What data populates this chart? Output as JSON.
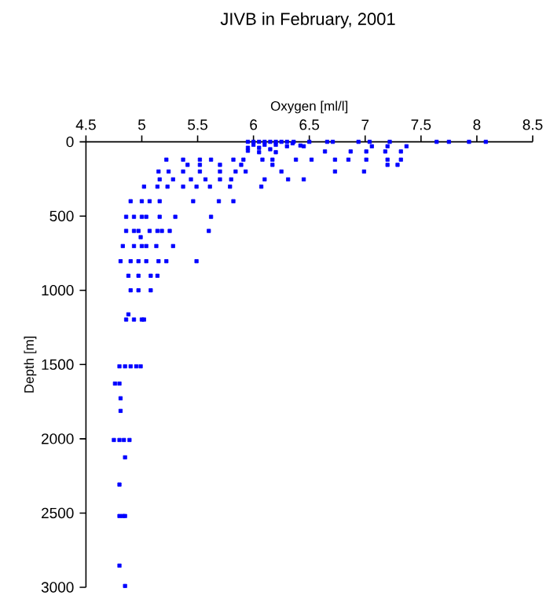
{
  "chart_data": {
    "type": "scatter",
    "title": "JIVB in February, 2001",
    "xlabel": "Oxygen [ml/l]",
    "ylabel": "Depth [m]",
    "xlim": [
      4.5,
      8.5
    ],
    "xticks": [
      4.5,
      5,
      5.5,
      6,
      6.5,
      7,
      7.5,
      8,
      8.5
    ],
    "ylim": [
      3000,
      0
    ],
    "yticks": [
      0,
      500,
      1000,
      1500,
      2000,
      2500,
      3000
    ],
    "marker": "square",
    "series": [
      {
        "color": "#0000ff",
        "x": [
          5.95,
          6.0,
          6.05,
          6.1,
          6.15,
          6.2,
          6.25,
          6.3,
          6.0,
          6.1,
          6.2,
          6.3,
          5.95,
          6.05,
          6.15,
          5.95,
          6.05,
          6.2,
          6.35,
          6.42,
          6.36,
          6.5,
          6.66,
          6.71,
          6.94,
          7.04,
          7.22,
          7.64,
          7.75,
          7.93,
          8.08,
          6.45,
          7.06,
          7.2,
          7.37,
          6.64,
          6.87,
          7.01,
          7.18,
          7.32,
          5.22,
          5.37,
          5.52,
          5.62,
          5.82,
          5.91,
          6.08,
          6.17,
          6.38,
          6.52,
          6.73,
          6.85,
          7.01,
          7.2,
          7.32,
          5.41,
          5.52,
          5.7,
          5.89,
          6.17,
          7.2,
          7.29,
          5.15,
          5.24,
          5.37,
          5.52,
          5.7,
          5.84,
          5.93,
          6.25,
          6.73,
          6.99,
          5.16,
          5.28,
          5.44,
          5.57,
          5.7,
          5.8,
          6.1,
          6.31,
          6.45,
          5.02,
          5.14,
          5.23,
          5.37,
          5.49,
          5.61,
          5.79,
          6.07,
          4.9,
          5.0,
          5.07,
          5.16,
          5.46,
          5.69,
          5.82,
          4.86,
          4.93,
          5.0,
          5.04,
          5.16,
          5.3,
          5.62,
          4.86,
          4.93,
          4.97,
          5.07,
          5.14,
          5.18,
          5.25,
          5.6,
          4.99,
          4.83,
          4.93,
          5.0,
          5.04,
          5.13,
          5.28,
          4.81,
          4.9,
          4.97,
          5.04,
          5.15,
          5.22,
          5.49,
          4.88,
          4.97,
          5.08,
          5.14,
          4.9,
          4.97,
          5.08,
          4.88,
          4.86,
          4.93,
          5.0,
          5.02,
          4.8,
          4.85,
          4.9,
          4.95,
          4.99,
          4.76,
          4.8,
          4.81,
          4.81,
          4.75,
          4.8,
          4.84,
          4.89,
          4.85,
          4.8,
          4.8,
          4.83,
          4.85,
          4.8,
          4.85
        ],
        "values": [
          0,
          0,
          0,
          0,
          0,
          0,
          0,
          0,
          20,
          20,
          20,
          30,
          40,
          40,
          50,
          60,
          70,
          70,
          10,
          25,
          0,
          0,
          0,
          0,
          0,
          0,
          0,
          0,
          0,
          0,
          0,
          30,
          30,
          30,
          30,
          65,
          65,
          65,
          65,
          65,
          120,
          120,
          120,
          120,
          120,
          120,
          120,
          120,
          120,
          120,
          120,
          120,
          120,
          120,
          120,
          155,
          155,
          155,
          155,
          155,
          155,
          155,
          200,
          200,
          200,
          200,
          200,
          200,
          200,
          200,
          200,
          200,
          253,
          253,
          253,
          253,
          253,
          253,
          253,
          253,
          253,
          302,
          302,
          302,
          302,
          302,
          302,
          302,
          302,
          400,
          400,
          400,
          400,
          400,
          400,
          400,
          505,
          505,
          505,
          505,
          505,
          505,
          505,
          600,
          600,
          600,
          600,
          600,
          600,
          600,
          600,
          642,
          702,
          702,
          702,
          702,
          702,
          702,
          804,
          804,
          804,
          804,
          804,
          804,
          804,
          902,
          902,
          902,
          902,
          1000,
          1000,
          1000,
          1162,
          1197,
          1197,
          1197,
          1197,
          1512,
          1512,
          1512,
          1512,
          1512,
          1628,
          1628,
          1727,
          1812,
          2008,
          2008,
          2008,
          2008,
          2125,
          2308,
          2520,
          2520,
          2520,
          2854,
          2991
        ]
      }
    ]
  }
}
